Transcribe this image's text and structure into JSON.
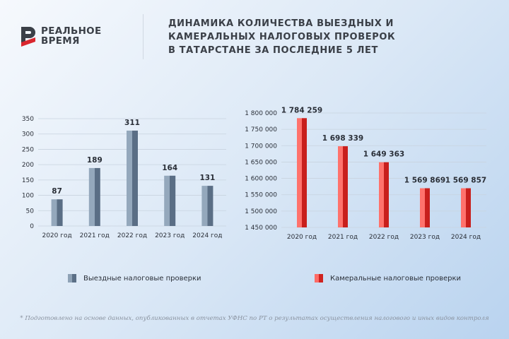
{
  "brand": {
    "line1": "РЕАЛЬНОЕ",
    "line2": "ВРЕМЯ",
    "accent": "#d9262e"
  },
  "title": {
    "line1": "ДИНАМИКА КОЛИЧЕСТВА ВЫЕЗДНЫХ И",
    "line2": "КАМЕРАЛЬНЫХ НАЛОГОВЫХ ПРОВЕРОК",
    "line3": "В ТАТАРСТАНЕ ЗА ПОСЛЕДНИЕ 5 ЛЕТ"
  },
  "chart_data": [
    {
      "type": "bar",
      "categories": [
        "2020 год",
        "2021 год",
        "2022 год",
        "2023 год",
        "2024 год"
      ],
      "series": [
        {
          "name": "Выездные налоговые проверки",
          "values": [
            87,
            189,
            311,
            164,
            131
          ]
        }
      ],
      "value_labels": [
        "87",
        "189",
        "311",
        "164",
        "131"
      ],
      "ylim": [
        0,
        350
      ],
      "yticks": [
        0,
        50,
        100,
        150,
        200,
        250,
        300,
        350
      ],
      "ytick_labels": [
        "0",
        "50",
        "100",
        "150",
        "200",
        "250",
        "300",
        "350"
      ],
      "grid": true,
      "color": "#6f859c"
    },
    {
      "type": "bar",
      "categories": [
        "2020 год",
        "2021 год",
        "2022 год",
        "2023 год",
        "2024 год"
      ],
      "series": [
        {
          "name": "Камеральные налоговые проверки",
          "values": [
            1784259,
            1698339,
            1649363,
            1569869,
            1569857
          ]
        }
      ],
      "value_labels": [
        "1 784 259",
        "1 698 339",
        "1 649 363",
        "1 569 869",
        "1 569 857"
      ],
      "ylim": [
        1450000,
        1800000
      ],
      "yticks": [
        1450000,
        1500000,
        1550000,
        1600000,
        1650000,
        1700000,
        1750000,
        1800000
      ],
      "ytick_labels": [
        "1 450 000",
        "1 500 000",
        "1 550 000",
        "1 600 000",
        "1 650 000",
        "1 700 000",
        "1 750 000",
        "1 800 000"
      ],
      "grid": true,
      "color": "#e0322f"
    }
  ],
  "legend": {
    "left_label": "Выездные налоговые проверки",
    "right_label": "Камеральные налоговые проверки"
  },
  "footnote": "* Подготовлено на основе данных, опубликованных в отчетах УФНС по РТ о результатах осуществления налогового и иных видов контроля"
}
